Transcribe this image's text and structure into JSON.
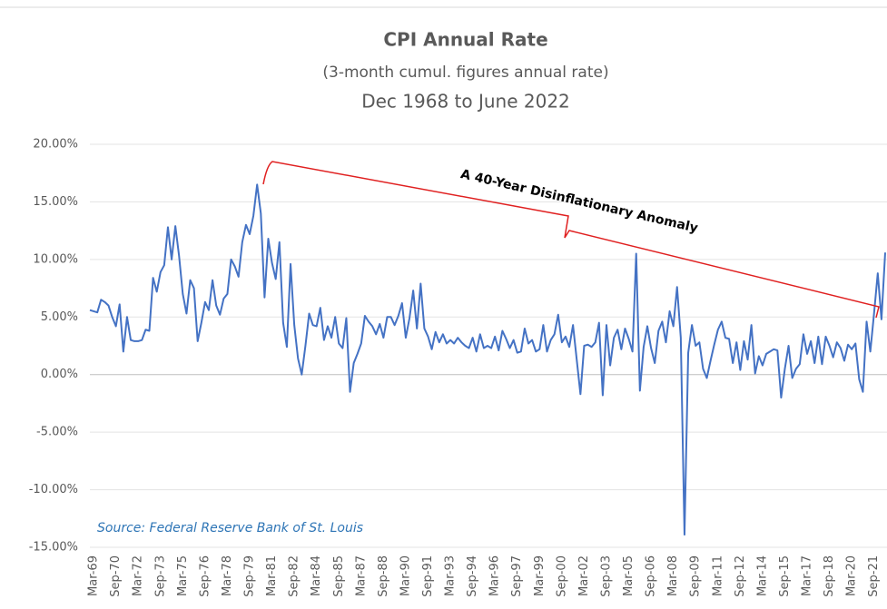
{
  "chart_data": {
    "type": "line",
    "title": "CPI Annual Rate",
    "subtitle": "(3-month cumul. figures annual rate)",
    "date_range": "Dec 1968 to June 2022",
    "annotation": "A 40-Year Disinflationary Anomaly",
    "source": "Source: Federal Reserve Bank of St. Louis",
    "categories": [
      null,
      "Mar-69",
      null,
      null,
      null,
      null,
      null,
      "Sep-70",
      null,
      null,
      null,
      null,
      null,
      "Mar-72",
      null,
      null,
      null,
      null,
      null,
      "Sep-73",
      null,
      null,
      null,
      null,
      null,
      "Mar-75",
      null,
      null,
      null,
      null,
      null,
      "Sep-76",
      null,
      null,
      null,
      null,
      null,
      "Mar-78",
      null,
      null,
      null,
      null,
      null,
      "Sep-79",
      null,
      null,
      null,
      null,
      null,
      "Mar-81",
      null,
      null,
      null,
      null,
      null,
      "Sep-82",
      null,
      null,
      null,
      null,
      null,
      "Mar-84",
      null,
      null,
      null,
      null,
      null,
      "Sep-85",
      null,
      null,
      null,
      null,
      null,
      "Mar-87",
      null,
      null,
      null,
      null,
      null,
      "Sep-88",
      null,
      null,
      null,
      null,
      null,
      "Mar-90",
      null,
      null,
      null,
      null,
      null,
      "Sep-91",
      null,
      null,
      null,
      null,
      null,
      "Mar-93",
      null,
      null,
      null,
      null,
      null,
      "Sep-94",
      null,
      null,
      null,
      null,
      null,
      "Mar-96",
      null,
      null,
      null,
      null,
      null,
      "Sep-97",
      null,
      null,
      null,
      null,
      null,
      "Mar-99",
      null,
      null,
      null,
      null,
      null,
      "Sep-00",
      null,
      null,
      null,
      null,
      null,
      "Mar-02",
      null,
      null,
      null,
      null,
      null,
      "Sep-03",
      null,
      null,
      null,
      null,
      null,
      "Mar-05",
      null,
      null,
      null,
      null,
      null,
      "Sep-06",
      null,
      null,
      null,
      null,
      null,
      "Mar-08",
      null,
      null,
      null,
      null,
      null,
      "Sep-09",
      null,
      null,
      null,
      null,
      null,
      "Mar-11",
      null,
      null,
      null,
      null,
      null,
      "Sep-12",
      null,
      null,
      null,
      null,
      null,
      "Mar-14",
      null,
      null,
      null,
      null,
      null,
      "Sep-15",
      null,
      null,
      null,
      null,
      null,
      "Mar-17",
      null,
      null,
      null,
      null,
      null,
      "Sep-18",
      null,
      null,
      null,
      null,
      null,
      "Mar-20",
      null,
      null,
      null,
      null,
      null,
      "Sep-21",
      null,
      null,
      null
    ],
    "series": [
      {
        "color": "#4472c4",
        "values": [
          5.6,
          5.5,
          5.4,
          6.5,
          6.3,
          6.0,
          5.0,
          4.2,
          6.1,
          2.0,
          5.0,
          3.0,
          2.9,
          2.9,
          3.0,
          3.9,
          3.8,
          8.4,
          7.2,
          8.9,
          9.5,
          12.8,
          10.0,
          12.9,
          10.3,
          7.0,
          5.3,
          8.2,
          7.5,
          2.9,
          4.5,
          6.3,
          5.6,
          8.2,
          6.0,
          5.2,
          6.6,
          7.0,
          10.0,
          9.4,
          8.5,
          11.5,
          13.0,
          12.2,
          13.8,
          16.5,
          14.0,
          6.7,
          11.8,
          9.7,
          8.3,
          11.5,
          4.5,
          2.4,
          9.6,
          4.3,
          1.4,
          0.0,
          2.5,
          5.3,
          4.3,
          4.2,
          5.8,
          3.0,
          4.2,
          3.2,
          5.0,
          2.7,
          2.3,
          4.9,
          -1.5,
          1.0,
          1.8,
          2.7,
          5.1,
          4.6,
          4.2,
          3.5,
          4.4,
          3.2,
          5.0,
          5.0,
          4.3,
          5.1,
          6.2,
          3.2,
          4.9,
          7.3,
          4.0,
          7.9,
          4.0,
          3.3,
          2.2,
          3.7,
          2.8,
          3.5,
          2.7,
          3.0,
          2.7,
          3.2,
          2.8,
          2.5,
          2.3,
          3.2,
          2.0,
          3.5,
          2.3,
          2.5,
          2.3,
          3.3,
          2.1,
          3.8,
          3.1,
          2.3,
          3.0,
          1.9,
          2.0,
          4.0,
          2.7,
          3.0,
          2.0,
          2.2,
          4.3,
          2.0,
          3.0,
          3.5,
          5.2,
          2.8,
          3.3,
          2.4,
          4.3,
          1.3,
          -1.7,
          2.5,
          2.6,
          2.4,
          2.8,
          4.5,
          -1.8,
          4.3,
          0.8,
          3.2,
          3.9,
          2.2,
          4.0,
          3.1,
          2.0,
          10.5,
          -1.4,
          2.4,
          4.2,
          2.3,
          1.0,
          3.8,
          4.6,
          2.8,
          5.5,
          4.2,
          7.6,
          3.2,
          -13.9,
          1.9,
          4.3,
          2.5,
          2.8,
          0.5,
          -0.3,
          1.2,
          2.6,
          3.9,
          4.6,
          3.2,
          3.1,
          1.0,
          2.8,
          0.4,
          2.9,
          1.3,
          4.3,
          0.1,
          1.6,
          0.8,
          1.8,
          2.0,
          2.2,
          2.1,
          -2.0,
          0.5,
          2.5,
          -0.3,
          0.5,
          0.9,
          3.5,
          1.8,
          2.9,
          1.0,
          3.3,
          0.9,
          3.3,
          2.5,
          1.5,
          2.8,
          2.3,
          1.2,
          2.6,
          2.2,
          2.7,
          -0.4,
          -1.5,
          4.6,
          2.0,
          5.3,
          8.8,
          4.8,
          10.6
        ]
      }
    ],
    "ylim": [
      -15,
      20
    ],
    "yticks": [
      {
        "value": -15,
        "label": "-15.00%"
      },
      {
        "value": -10,
        "label": "-10.00%"
      },
      {
        "value": -5,
        "label": "-5.00%"
      },
      {
        "value": 0,
        "label": "0.00%"
      },
      {
        "value": 5,
        "label": "5.00%"
      },
      {
        "value": 10,
        "label": "10.00%"
      },
      {
        "value": 15,
        "label": "15.00%"
      },
      {
        "value": 20,
        "label": "20.00%"
      }
    ],
    "grid": true
  }
}
